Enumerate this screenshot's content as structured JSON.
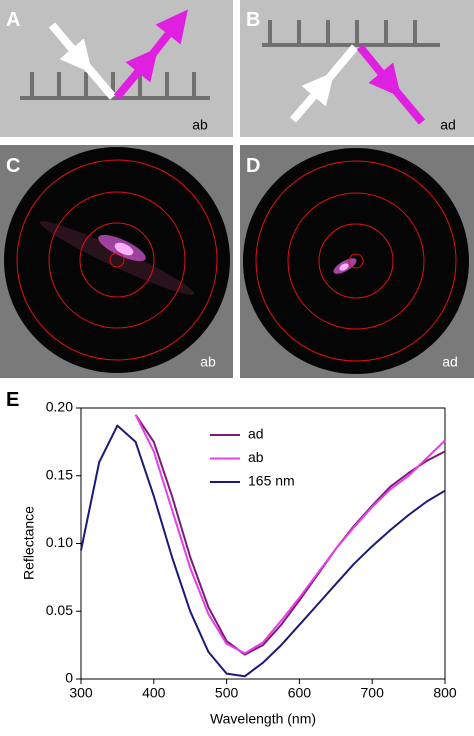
{
  "panels": [
    {
      "label": "A",
      "note": "ab"
    },
    {
      "label": "B",
      "note": "ad"
    },
    {
      "label": "C",
      "note": "ab"
    },
    {
      "label": "D",
      "note": "ad"
    }
  ],
  "chart_data": {
    "type": "line",
    "panel_label": "E",
    "x_label": "Wavelength (nm)",
    "y_label": "Reflectance",
    "x": [
      300,
      325,
      350,
      375,
      400,
      425,
      450,
      475,
      500,
      525,
      550,
      575,
      600,
      625,
      650,
      675,
      700,
      725,
      750,
      775,
      800
    ],
    "series": [
      {
        "name": "ad",
        "color": "#7b1a7b",
        "values": [
          null,
          null,
          null,
          0.195,
          0.175,
          0.135,
          0.09,
          0.053,
          0.028,
          0.018,
          0.025,
          0.04,
          0.058,
          0.077,
          0.096,
          0.113,
          0.128,
          0.142,
          0.152,
          0.161,
          0.168
        ]
      },
      {
        "name": "ab",
        "color": "#e83ee8",
        "values": [
          null,
          null,
          null,
          0.195,
          0.168,
          0.125,
          0.082,
          0.048,
          0.026,
          0.019,
          0.027,
          0.043,
          0.06,
          0.078,
          0.096,
          0.112,
          0.127,
          0.14,
          0.15,
          0.163,
          0.176
        ]
      },
      {
        "name": "165 nm",
        "color": "#1a1a78",
        "values": [
          0.095,
          0.16,
          0.187,
          0.175,
          0.135,
          0.09,
          0.05,
          0.02,
          0.004,
          0.002,
          0.012,
          0.025,
          0.04,
          0.055,
          0.07,
          0.085,
          0.098,
          0.11,
          0.121,
          0.131,
          0.139
        ]
      }
    ],
    "xlim": [
      300,
      800
    ],
    "xticks": [
      300,
      400,
      500,
      600,
      700,
      800
    ],
    "ylim": [
      0,
      0.2
    ],
    "yticks": [
      0,
      0.05,
      {
        "value": 0.1,
        "label": "0.10"
      },
      0.15,
      {
        "value": 0.2,
        "label": "0.20"
      }
    ],
    "legend": "top-right"
  }
}
